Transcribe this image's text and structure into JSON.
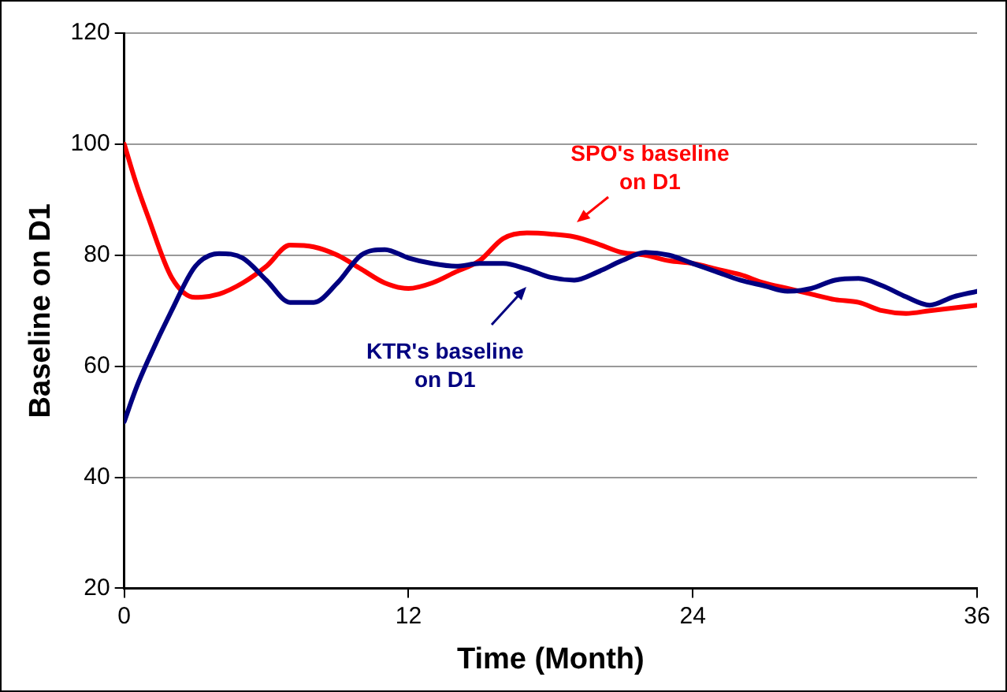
{
  "chart_data": {
    "type": "line",
    "xlabel": "Time (Month)",
    "ylabel": "Baseline on D1",
    "x": [
      0,
      0.5,
      1,
      2,
      3,
      4,
      5,
      6,
      7,
      8,
      9,
      10,
      11,
      12,
      13,
      14,
      15,
      16,
      17,
      18,
      19,
      20,
      21,
      22,
      23,
      24,
      25,
      26,
      27,
      28,
      29,
      30,
      31,
      32,
      33,
      34,
      35,
      36
    ],
    "xlim": [
      0,
      36
    ],
    "xticks": [
      0,
      12,
      24,
      36
    ],
    "ylim": [
      20,
      120
    ],
    "yticks": [
      20,
      40,
      60,
      80,
      100,
      120
    ],
    "grid": "y",
    "legend": false,
    "marker": "none",
    "line_style": "solid",
    "series": [
      {
        "color": "#000080",
        "values": [
          50,
          56,
          61,
          70,
          78,
          80.3,
          79.5,
          75.5,
          71.5,
          71.5,
          75,
          80,
          81,
          79.5,
          78.5,
          78,
          78.5,
          78.5,
          77.5,
          76,
          75.5,
          77,
          79,
          80.5,
          80,
          78.5,
          77,
          75.5,
          74.5,
          73.5,
          74,
          75.5,
          75.8,
          74.5,
          72.5,
          71,
          72.5,
          73.5
        ]
      },
      {
        "color": "#ff0000",
        "values": [
          100,
          93,
          87,
          76,
          72.4,
          73,
          75,
          78,
          81.8,
          81.5,
          80,
          77.5,
          75,
          74,
          75,
          77,
          79,
          83,
          84,
          83.8,
          83.3,
          82,
          80.5,
          80,
          79,
          78.5,
          77.5,
          76.5,
          75,
          74,
          73,
          72,
          71.5,
          70,
          69.5,
          70,
          70.5,
          71
        ]
      }
    ],
    "annotations": [
      {
        "text": "KTR's baseline on D1",
        "x": 17,
        "y": 77
      },
      {
        "text": "SPO's baseline on D1",
        "x": 19,
        "y": 83
      }
    ]
  }
}
